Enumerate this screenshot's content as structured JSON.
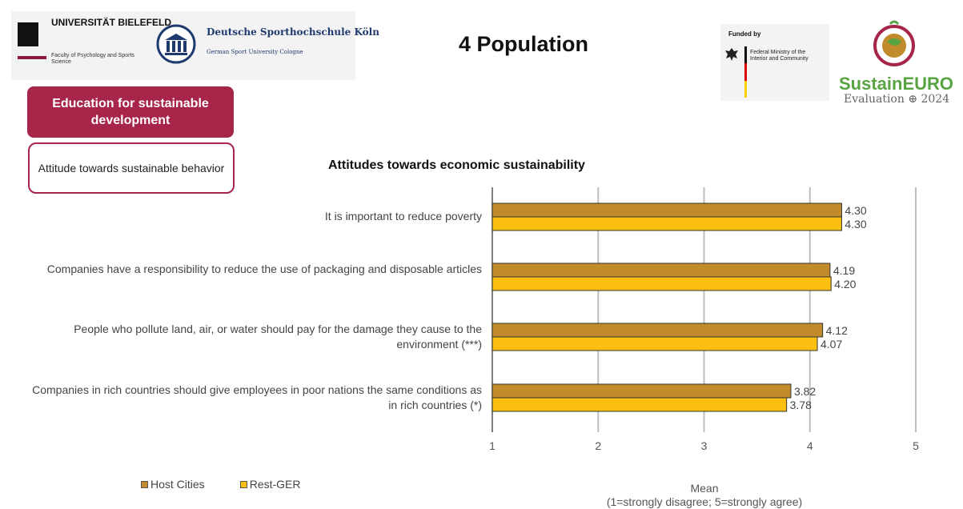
{
  "logos": {
    "ub_name": "UNIVERSITÄT BIELEFELD",
    "ub_faculty": "Faculty of Psychology and Sports Science",
    "dshs_name": "Deutsche Sporthochschule Köln",
    "dshs_sub": "German Sport University Cologne",
    "funded_by": "Funded by",
    "ministry": "Federal Ministry of the Interior and Community",
    "sustaineuro_name": "SustainEURO",
    "sustaineuro_eval": "Evaluation ⊕ 2024"
  },
  "page_title": "4 Population",
  "section": {
    "primary": "Education for sustainable development",
    "secondary": "Attitude towards sustainable behavior"
  },
  "colors": {
    "host_cities": "#c18a2a",
    "rest_ger": "#fbbf0f",
    "accent": "#a8254a"
  },
  "chart_data": {
    "type": "bar",
    "orientation": "horizontal",
    "title": "Attitudes towards economic sustainability",
    "xlabel": "Mean",
    "xlabel_note": "(1=strongly disagree; 5=strongly agree)",
    "xlim": [
      1,
      5
    ],
    "xticks": [
      "1",
      "2",
      "3",
      "4",
      "5"
    ],
    "grid": true,
    "legend_position": "bottom-left",
    "categories": [
      "It is important to reduce poverty",
      "Companies have a responsibility to reduce the use of packaging and disposable articles",
      "People who pollute land, air, or water should pay for the damage they cause to the environment (***)",
      "Companies in rich countries should give employees in poor nations the same conditions as in rich countries (*)"
    ],
    "series": [
      {
        "name": "Host Cities",
        "values": [
          4.3,
          4.19,
          4.12,
          3.82
        ],
        "labels": [
          "4.30",
          "4.19",
          "4.12",
          "3.82"
        ]
      },
      {
        "name": "Rest-GER",
        "values": [
          4.3,
          4.2,
          4.07,
          3.78
        ],
        "labels": [
          "4.30",
          "4.20",
          "4.07",
          "3.78"
        ]
      }
    ]
  }
}
